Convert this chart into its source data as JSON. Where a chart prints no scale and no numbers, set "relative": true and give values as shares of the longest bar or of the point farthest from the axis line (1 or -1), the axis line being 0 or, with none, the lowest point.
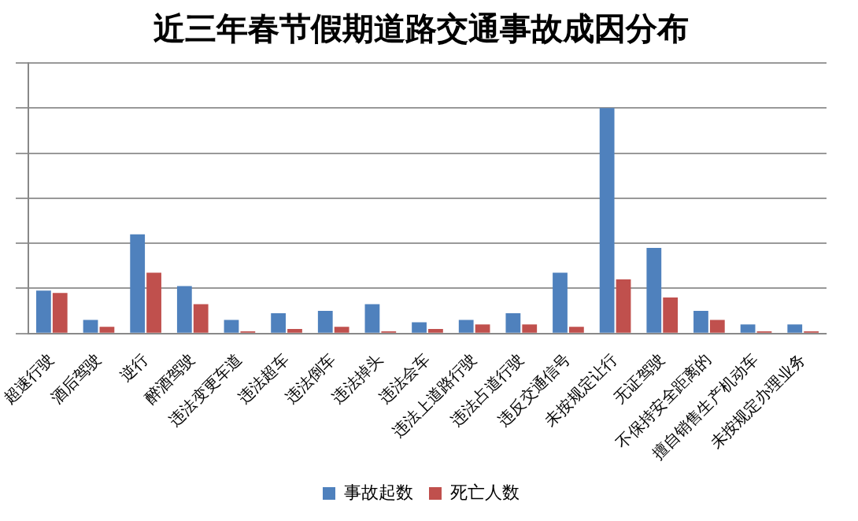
{
  "chart_data": {
    "type": "bar",
    "title": "近三年春节假期道路交通事故成因分布",
    "relative": true,
    "grid": "y",
    "legend": "bottom",
    "categories": [
      "超速行驶",
      "酒后驾驶",
      "逆行",
      "醉酒驾驶",
      "违法变更车道",
      "违法超车",
      "违法倒车",
      "违法掉头",
      "违法会车",
      "违法上道路行驶",
      "违法占道行驶",
      "违反交通信号",
      "未按规定让行",
      "无证驾驶",
      "不保持安全距离的",
      "擅自销售生产机动车",
      "未按规定办理业务"
    ],
    "series": [
      {
        "name": "事故起数",
        "color": "#4f81bd",
        "values": [
          0.19,
          0.06,
          0.44,
          0.21,
          0.06,
          0.09,
          0.1,
          0.13,
          0.05,
          0.06,
          0.09,
          0.27,
          1,
          0.38,
          0.1,
          0.04,
          0.04
        ]
      },
      {
        "name": "死亡人数",
        "color": "#c0504d",
        "values": [
          0.18,
          0.03,
          0.27,
          0.13,
          0.01,
          0.02,
          0.03,
          0.01,
          0.02,
          0.04,
          0.04,
          0.03,
          0.24,
          0.16,
          0.06,
          0.01,
          0.01
        ]
      }
    ]
  }
}
